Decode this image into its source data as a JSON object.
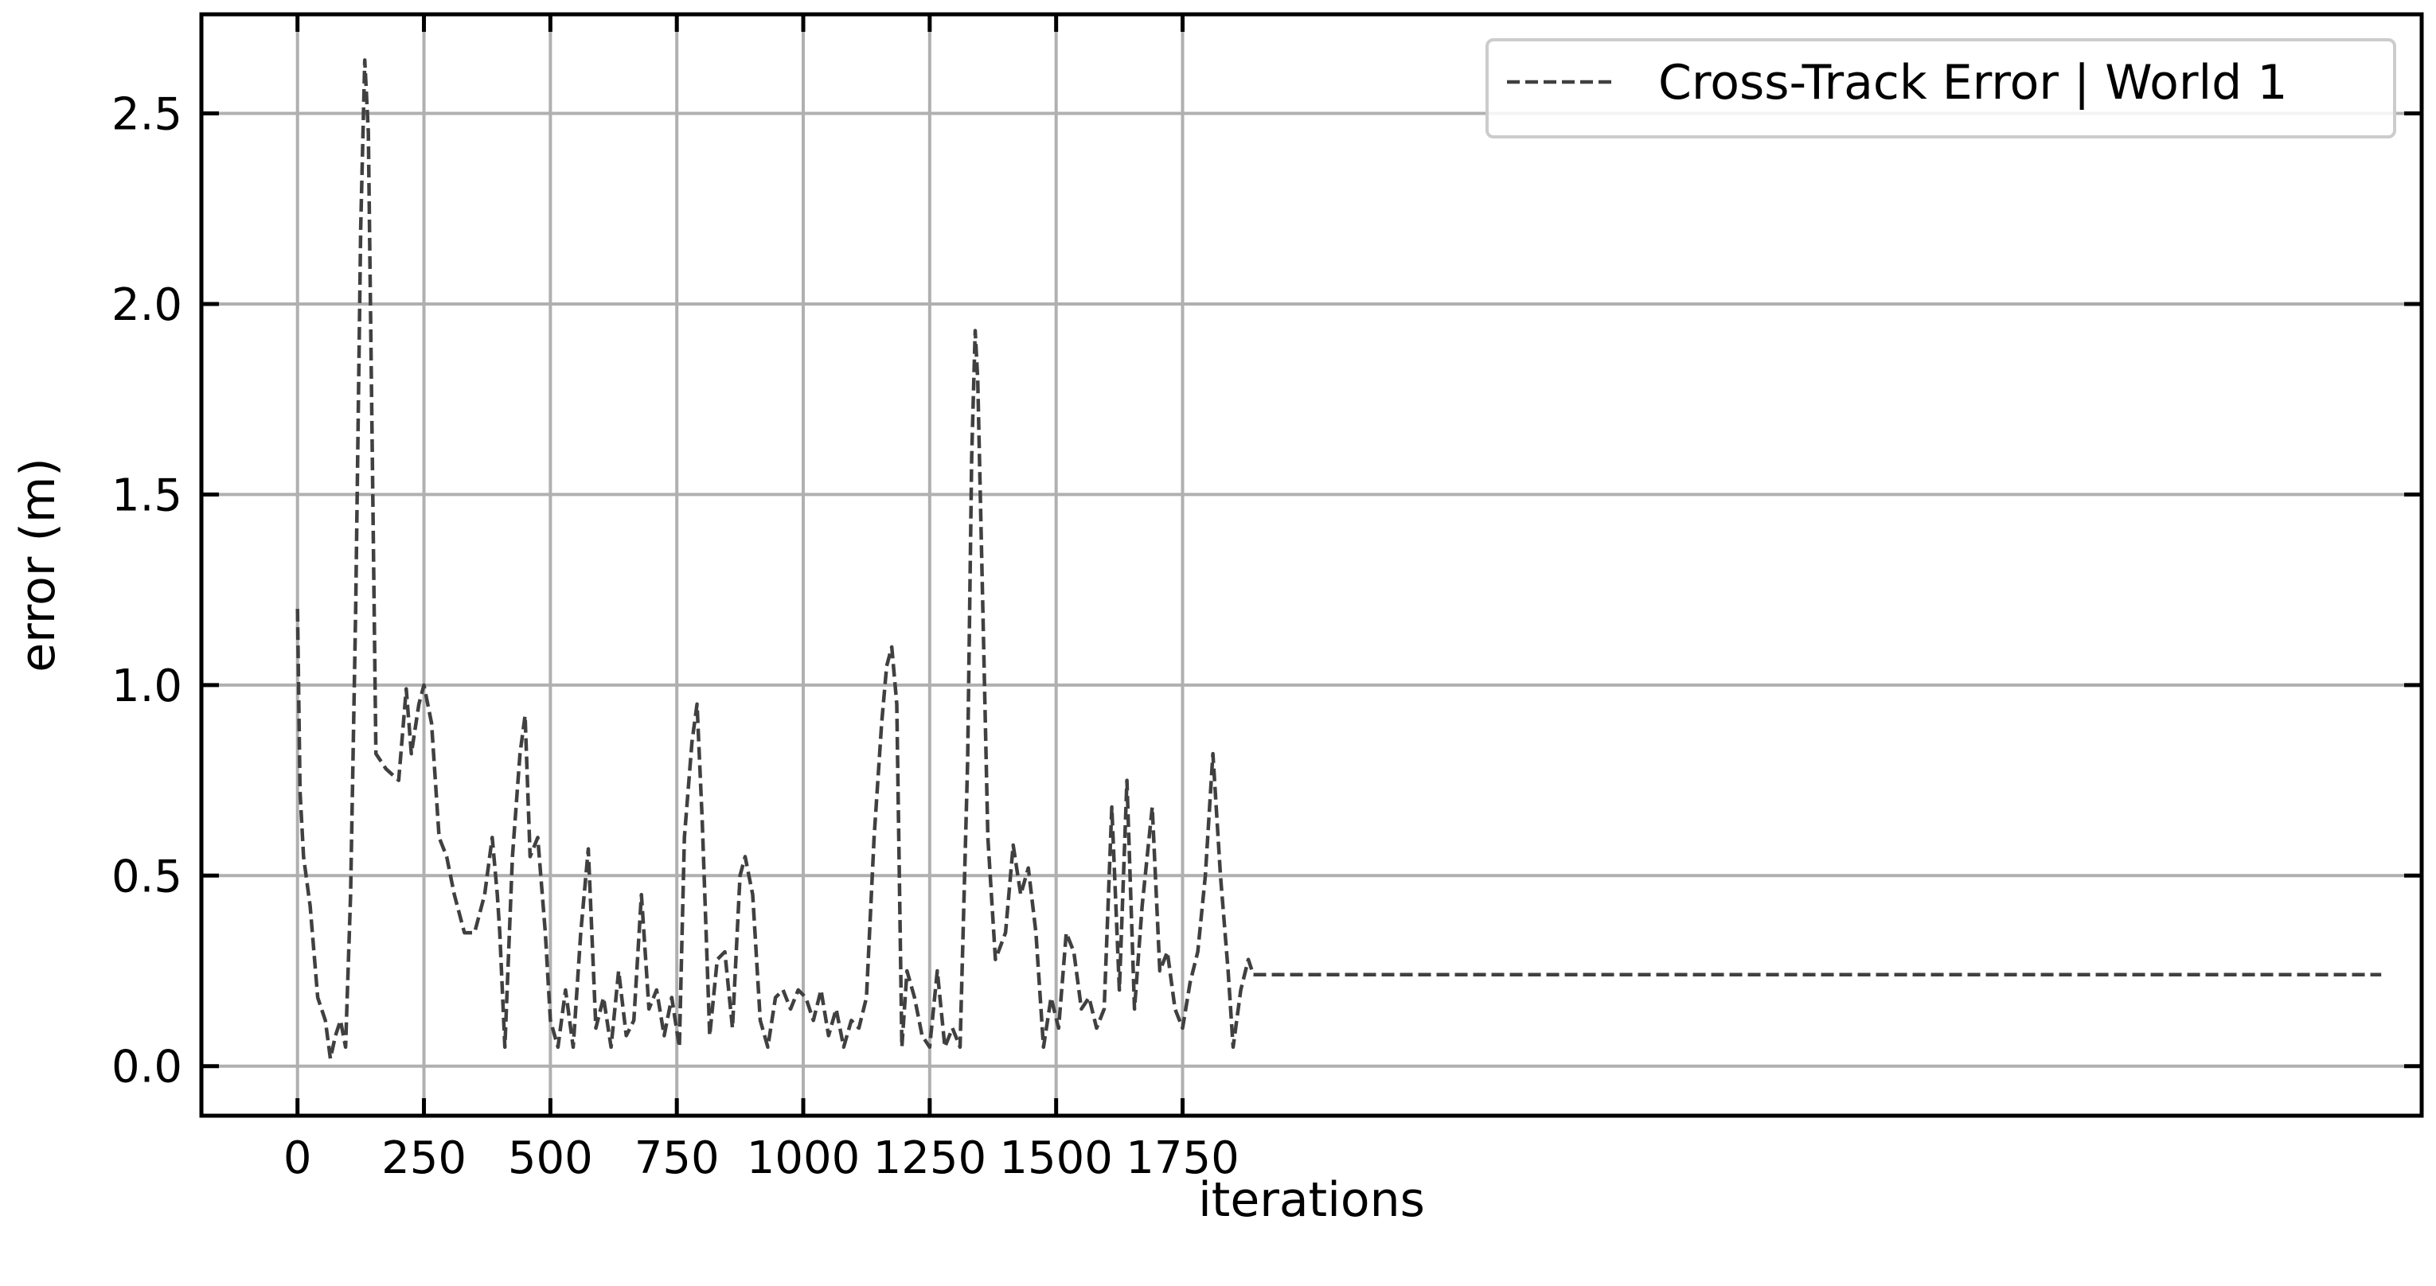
{
  "chart_data": {
    "type": "line",
    "title": "",
    "xlabel": "iterations",
    "ylabel": "error (m)",
    "xlim": [
      -190,
      4200
    ],
    "ylim": [
      -0.13,
      2.76
    ],
    "xticks": [
      0,
      250,
      500,
      750,
      1000,
      1250,
      1500,
      1750
    ],
    "xtick_labels": [
      "0",
      "250",
      "500",
      "750",
      "1000",
      "1250",
      "1500",
      "1750"
    ],
    "yticks": [
      0.0,
      0.5,
      1.0,
      1.5,
      2.0,
      2.5
    ],
    "ytick_labels": [
      "0.0",
      "0.5",
      "1.0",
      "1.5",
      "2.0",
      "2.5"
    ],
    "grid": true,
    "legend_position": "top-right",
    "series": [
      {
        "name": "Cross-Track Error | World 1",
        "style": "dashed",
        "color": "#404040",
        "x": [
          0,
          5,
          12,
          25,
          40,
          55,
          65,
          75,
          85,
          95,
          105,
          115,
          125,
          133,
          140,
          148,
          155,
          175,
          200,
          215,
          225,
          240,
          250,
          265,
          280,
          295,
          310,
          330,
          350,
          370,
          385,
          395,
          400,
          410,
          425,
          440,
          450,
          460,
          475,
          490,
          500,
          515,
          530,
          545,
          560,
          575,
          590,
          605,
          620,
          635,
          650,
          665,
          680,
          695,
          710,
          725,
          740,
          755,
          765,
          780,
          790,
          800,
          815,
          830,
          845,
          860,
          875,
          885,
          900,
          915,
          930,
          945,
          960,
          975,
          990,
          1005,
          1020,
          1035,
          1050,
          1065,
          1080,
          1095,
          1110,
          1125,
          1140,
          1155,
          1165,
          1175,
          1185,
          1195,
          1205,
          1220,
          1235,
          1250,
          1265,
          1280,
          1295,
          1310,
          1325,
          1333,
          1340,
          1345,
          1355,
          1365,
          1380,
          1400,
          1415,
          1430,
          1445,
          1460,
          1475,
          1490,
          1505,
          1520,
          1535,
          1550,
          1565,
          1580,
          1595,
          1610,
          1625,
          1640,
          1655,
          1670,
          1690,
          1705,
          1720,
          1735,
          1750,
          1765,
          1780,
          1795,
          1810,
          1825,
          1840,
          1850,
          1865,
          1880,
          1890,
          4120
        ],
        "values": [
          1.2,
          0.72,
          0.55,
          0.42,
          0.18,
          0.12,
          0.02,
          0.08,
          0.12,
          0.05,
          0.45,
          1.2,
          2.2,
          2.64,
          2.45,
          1.6,
          0.82,
          0.78,
          0.75,
          0.99,
          0.82,
          0.95,
          1.0,
          0.9,
          0.6,
          0.55,
          0.45,
          0.35,
          0.35,
          0.45,
          0.6,
          0.45,
          0.35,
          0.05,
          0.55,
          0.82,
          0.92,
          0.55,
          0.6,
          0.35,
          0.12,
          0.05,
          0.2,
          0.05,
          0.35,
          0.57,
          0.1,
          0.18,
          0.05,
          0.25,
          0.08,
          0.12,
          0.45,
          0.15,
          0.2,
          0.08,
          0.18,
          0.05,
          0.6,
          0.85,
          0.95,
          0.65,
          0.08,
          0.28,
          0.3,
          0.1,
          0.5,
          0.55,
          0.45,
          0.12,
          0.05,
          0.18,
          0.2,
          0.15,
          0.2,
          0.18,
          0.12,
          0.2,
          0.08,
          0.15,
          0.05,
          0.12,
          0.1,
          0.18,
          0.6,
          0.9,
          1.05,
          1.1,
          0.95,
          0.05,
          0.25,
          0.18,
          0.08,
          0.05,
          0.25,
          0.05,
          0.1,
          0.05,
          0.8,
          1.6,
          1.93,
          1.8,
          1.2,
          0.6,
          0.28,
          0.35,
          0.58,
          0.45,
          0.52,
          0.35,
          0.05,
          0.18,
          0.1,
          0.35,
          0.3,
          0.15,
          0.18,
          0.1,
          0.15,
          0.68,
          0.2,
          0.75,
          0.15,
          0.42,
          0.68,
          0.25,
          0.3,
          0.15,
          0.1,
          0.22,
          0.3,
          0.5,
          0.82,
          0.5,
          0.25,
          0.05,
          0.2,
          0.28,
          0.24,
          0.24
        ]
      }
    ]
  }
}
